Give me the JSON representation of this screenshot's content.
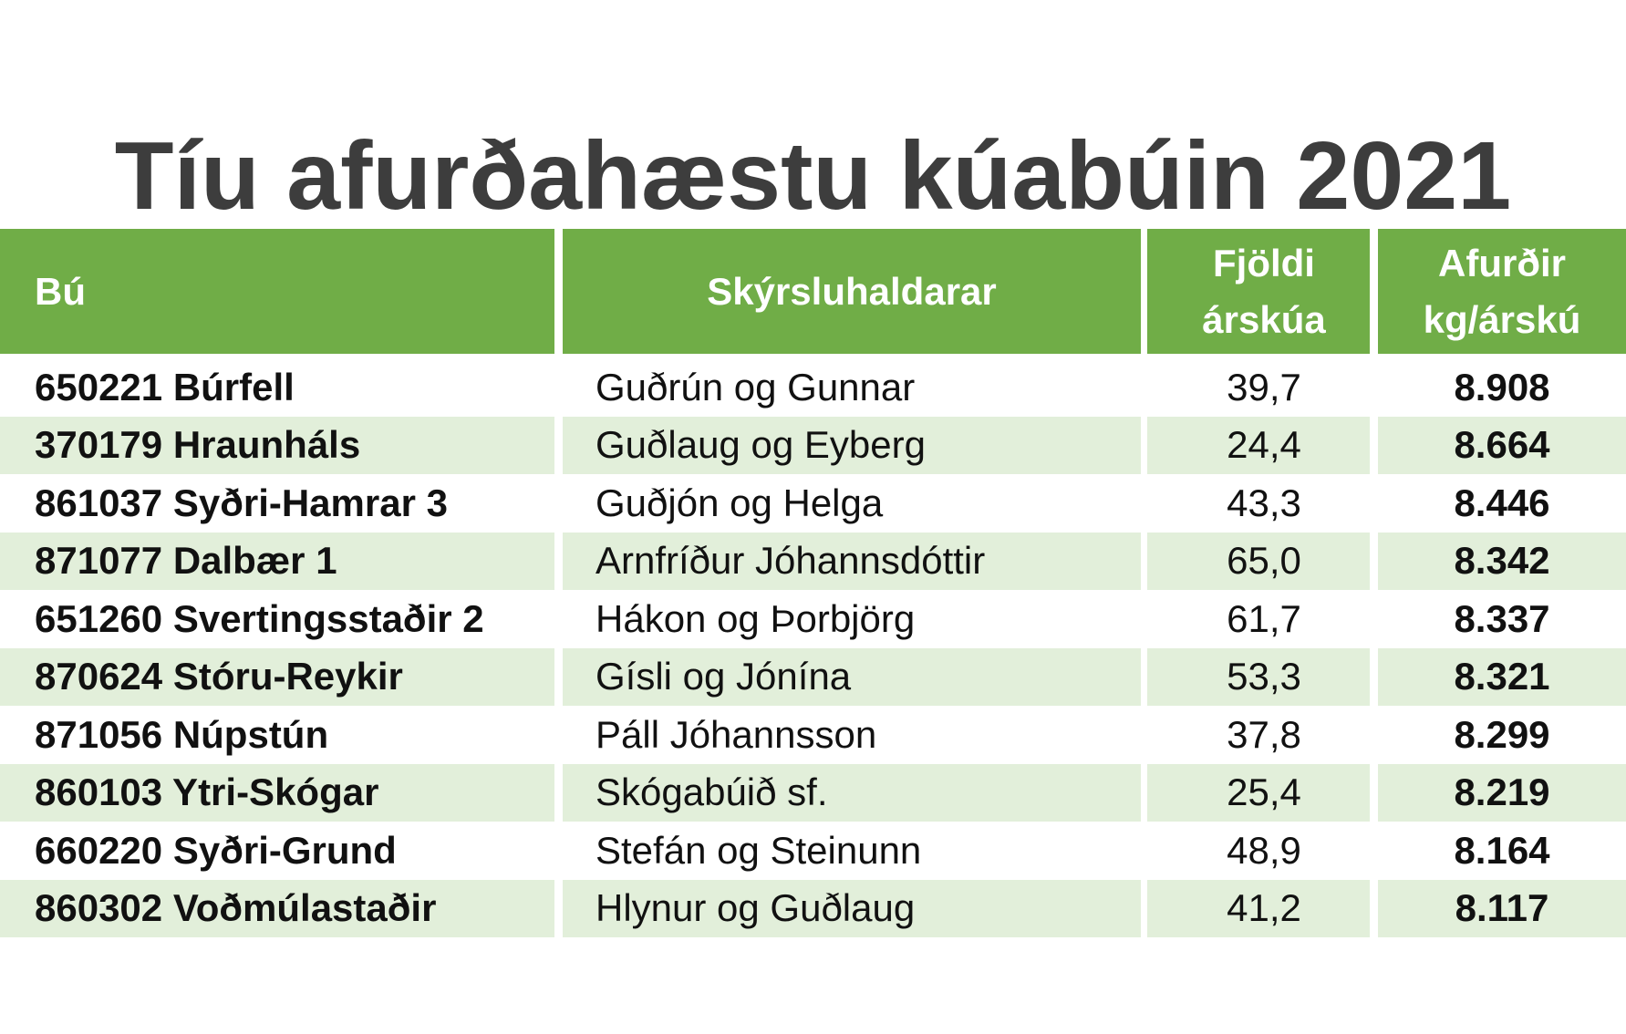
{
  "title": "Tíu afurðahæstu kúabúin 2021",
  "colors": {
    "header_bg": "#70ad47",
    "row_shade": "#e2efda",
    "title_text": "#3d3d3d"
  },
  "table": {
    "headers": {
      "bu": "Bú",
      "skyrsluhaldarar": "Skýrsluhaldarar",
      "fjoldi_line1": "Fjöldi",
      "fjoldi_line2": "árskúa",
      "afurdir_line1": "Afurðir",
      "afurdir_line2": "kg/árskú"
    },
    "rows": [
      {
        "bu": "650221 Búrfell",
        "skyrsluhaldarar": "Guðrún og Gunnar",
        "fjoldi": "39,7",
        "afurdir": "8.908"
      },
      {
        "bu": "370179 Hraunháls",
        "skyrsluhaldarar": "Guðlaug og Eyberg",
        "fjoldi": "24,4",
        "afurdir": "8.664"
      },
      {
        "bu": "861037 Syðri-Hamrar 3",
        "skyrsluhaldarar": "Guðjón og Helga",
        "fjoldi": "43,3",
        "afurdir": "8.446"
      },
      {
        "bu": "871077 Dalbær 1",
        "skyrsluhaldarar": "Arnfríður Jóhannsdóttir",
        "fjoldi": "65,0",
        "afurdir": "8.342"
      },
      {
        "bu": "651260 Svertingsstaðir 2",
        "skyrsluhaldarar": "Hákon og Þorbjörg",
        "fjoldi": "61,7",
        "afurdir": "8.337"
      },
      {
        "bu": "870624 Stóru-Reykir",
        "skyrsluhaldarar": "Gísli og Jónína",
        "fjoldi": "53,3",
        "afurdir": "8.321"
      },
      {
        "bu": "871056 Núpstún",
        "skyrsluhaldarar": "Páll Jóhannsson",
        "fjoldi": "37,8",
        "afurdir": "8.299"
      },
      {
        "bu": "860103 Ytri-Skógar",
        "skyrsluhaldarar": "Skógabúið sf.",
        "fjoldi": "25,4",
        "afurdir": "8.219"
      },
      {
        "bu": "660220 Syðri-Grund",
        "skyrsluhaldarar": "Stefán og Steinunn",
        "fjoldi": "48,9",
        "afurdir": "8.164"
      },
      {
        "bu": "860302 Voðmúlastaðir",
        "skyrsluhaldarar": "Hlynur og Guðlaug",
        "fjoldi": "41,2",
        "afurdir": "8.117"
      }
    ]
  }
}
